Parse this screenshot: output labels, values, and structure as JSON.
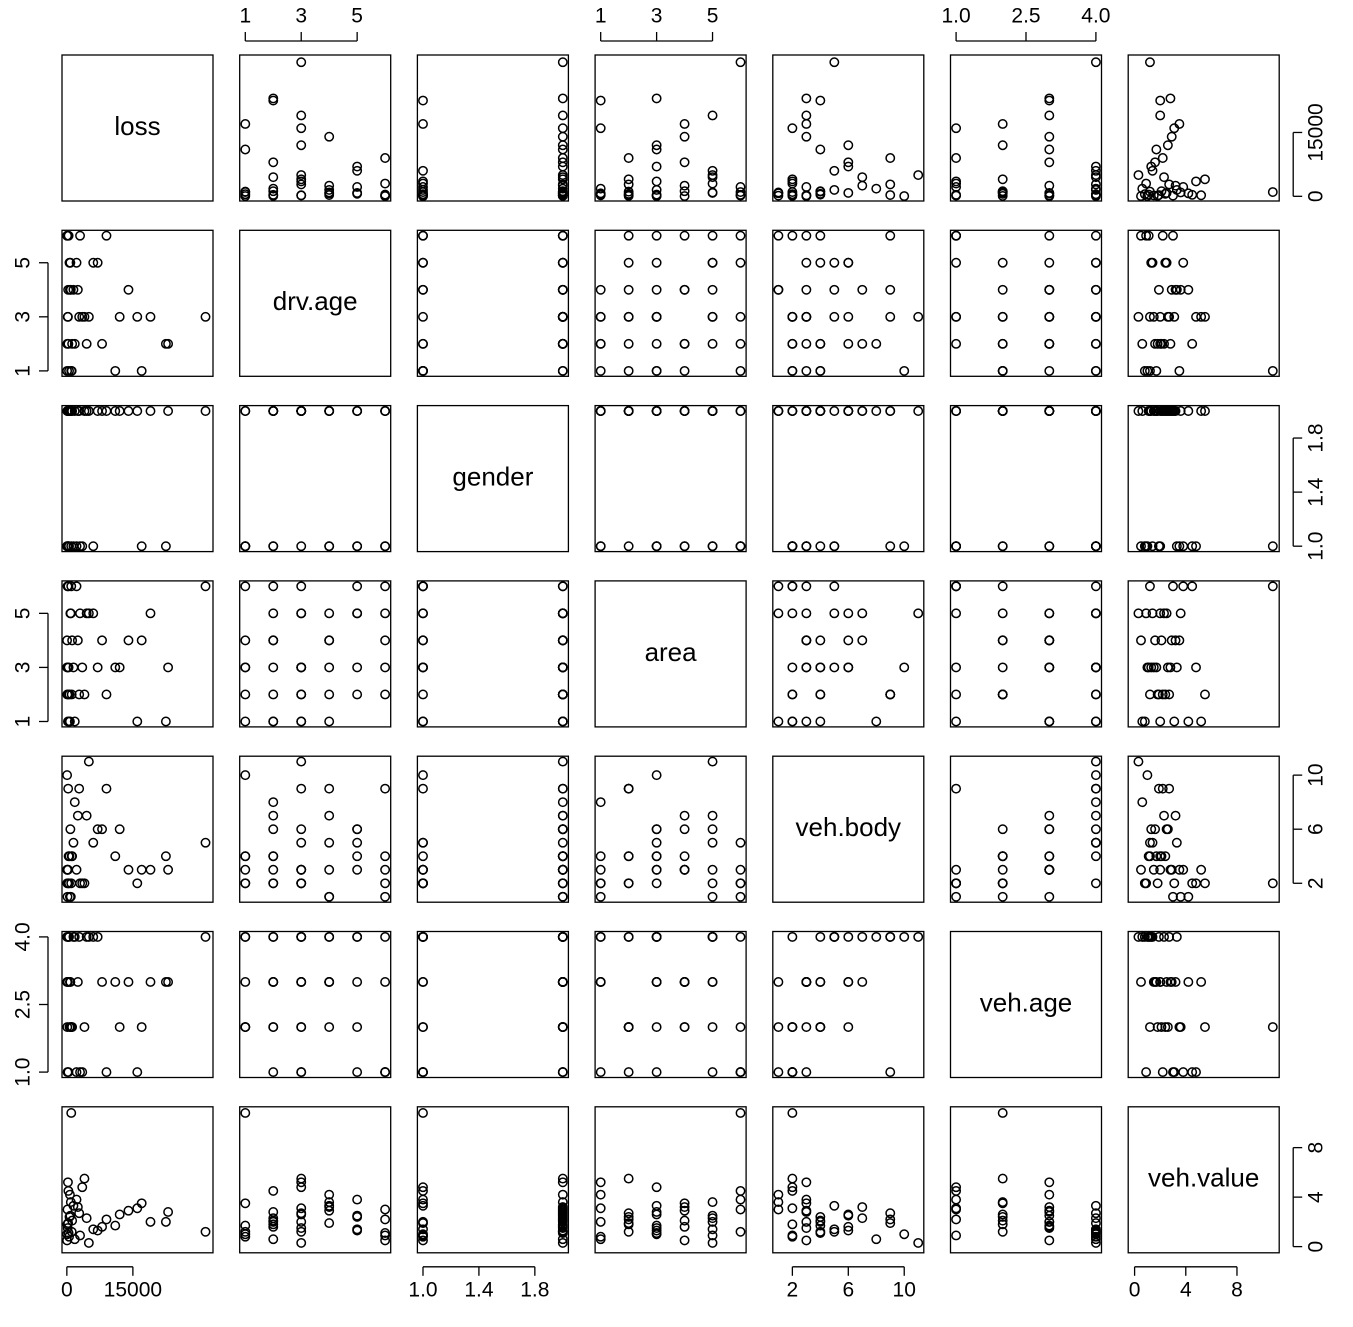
{
  "chart_data": {
    "type": "scatter_matrix",
    "variables": [
      {
        "name": "loss",
        "lim": [
          -1100,
          33200
        ],
        "ticks": [
          0,
          15000
        ],
        "values": [
          200,
          500,
          1200,
          300,
          31500,
          800,
          23000,
          22500,
          150,
          4000,
          60,
          2500,
          9000,
          17000,
          6000,
          1800,
          3500,
          12000,
          700,
          100,
          2200,
          5000,
          14000,
          400,
          1000,
          8000,
          250,
          3000,
          600,
          19000,
          1500,
          11000,
          350,
          7000,
          2800,
          900,
          50,
          16000,
          4500,
          1100
        ]
      },
      {
        "name": "drv.age",
        "lim": [
          0.8,
          6.2
        ],
        "ticks": [
          1,
          3,
          5
        ],
        "values": [
          3,
          1,
          2,
          4,
          3,
          5,
          2,
          2,
          6,
          3,
          1,
          4,
          6,
          1,
          5,
          2,
          3,
          3,
          4,
          2,
          5,
          3,
          4,
          6,
          1,
          2,
          3,
          6,
          5,
          3,
          4,
          1,
          2,
          5,
          3,
          4,
          6,
          3,
          2,
          1
        ]
      },
      {
        "name": "gender",
        "lim": [
          0.96,
          2.04
        ],
        "ticks": [
          {
            "value": 1,
            "label": "1.0"
          },
          {
            "value": 1.4,
            "label": "1.4"
          },
          {
            "value": 1.8,
            "label": "1.8"
          }
        ],
        "values": [
          2,
          1,
          2,
          1,
          2,
          2,
          2,
          1,
          2,
          2,
          1,
          2,
          2,
          1,
          1,
          2,
          1,
          2,
          2,
          2,
          1,
          2,
          2,
          2,
          1,
          2,
          2,
          1,
          2,
          2,
          1,
          2,
          1,
          2,
          2,
          2,
          1,
          2,
          2,
          2
        ]
      },
      {
        "name": "area",
        "lim": [
          0.8,
          6.2
        ],
        "ticks": [
          1,
          3,
          5
        ],
        "values": [
          3,
          1,
          4,
          2,
          6,
          5,
          3,
          1,
          6,
          2,
          3,
          4,
          2,
          4,
          5,
          1,
          3,
          3,
          1,
          2,
          6,
          5,
          4,
          3,
          6,
          4,
          1,
          5,
          2,
          5,
          3,
          3,
          6,
          3,
          2,
          5,
          4,
          1,
          5,
          2
        ]
      },
      {
        "name": "veh.body",
        "lim": [
          0.6,
          11.4
        ],
        "ticks": [
          2,
          6,
          10
        ],
        "values": [
          3,
          2,
          4,
          9,
          5,
          6,
          3,
          4,
          1,
          2,
          10,
          7,
          9,
          3,
          5,
          8,
          2,
          6,
          1,
          2,
          3,
          11,
          3,
          4,
          2,
          6,
          3,
          2,
          4,
          3,
          5,
          4,
          2,
          6,
          9,
          1,
          3,
          2,
          7,
          4
        ]
      },
      {
        "name": "veh.age",
        "lim": [
          0.88,
          4.12
        ],
        "ticks": [
          {
            "value": 1,
            "label": "1.0"
          },
          {
            "value": 2.5,
            "label": "2.5"
          },
          {
            "value": 4,
            "label": "4.0"
          }
        ],
        "values": [
          3,
          4,
          2,
          4,
          4,
          3,
          3,
          3,
          1,
          2,
          4,
          3,
          1,
          2,
          4,
          4,
          1,
          2,
          3,
          2,
          1,
          4,
          3,
          4,
          2,
          3,
          3,
          1,
          2,
          3,
          4,
          3,
          1,
          4,
          4,
          2,
          3,
          1,
          4,
          2
        ]
      },
      {
        "name": "veh.value",
        "lim": [
          -0.5,
          11.3
        ],
        "ticks": [
          0,
          4,
          8
        ],
        "values": [
          1.5,
          0.8,
          2.1,
          1.9,
          1.2,
          2.5,
          2.8,
          2.0,
          3.0,
          5.5,
          1.0,
          3.2,
          2.2,
          3.5,
          1.4,
          0.6,
          4.8,
          2.6,
          4.2,
          1.8,
          3.8,
          0.3,
          2.9,
          1.1,
          10.8,
          1.6,
          5.2,
          0.9,
          2.4,
          2.0,
          3.3,
          1.7,
          4.5,
          1.3,
          2.7,
          3.6,
          0.5,
          3.1,
          2.3,
          1.2
        ]
      }
    ]
  }
}
